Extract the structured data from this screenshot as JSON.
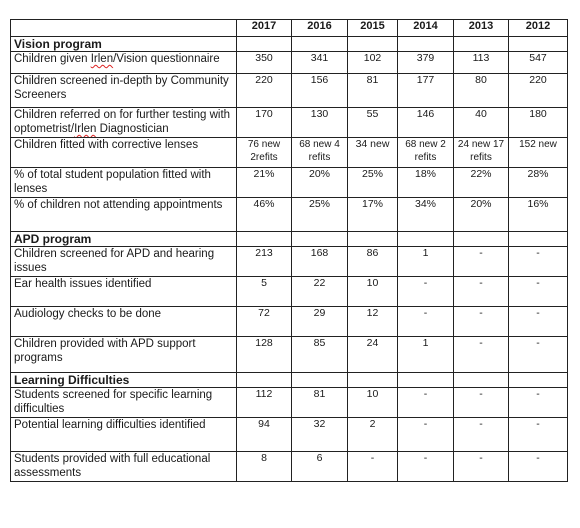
{
  "years": [
    "2017",
    "2016",
    "2015",
    "2014",
    "2013",
    "2012"
  ],
  "sections": [
    {
      "title": "Vision program",
      "rows": [
        {
          "label_parts": [
            "Children given ",
            "Irlen",
            "/Vision questionnaire"
          ],
          "values": [
            "350",
            "341",
            "102",
            "379",
            "113",
            "547"
          ]
        },
        {
          "label_parts": [
            "Children screened in-depth by Community Screeners"
          ],
          "values": [
            "220",
            "156",
            "81",
            "177",
            "80",
            "220"
          ]
        },
        {
          "label_parts": [
            "Children referred on for further testing with optometrist/",
            "Irlen",
            " Diagnostician"
          ],
          "values": [
            "170",
            "130",
            "55",
            "146",
            "40",
            "180"
          ]
        },
        {
          "label_parts": [
            "Children fitted with corrective lenses"
          ],
          "values": [
            "76 new 2refits",
            "68 new 4 refits",
            "34 new",
            "68 new 2 refits",
            "24 new 17 refits",
            "152 new"
          ]
        },
        {
          "label_parts": [
            "% of total student population fitted with lenses"
          ],
          "values": [
            "21%",
            "20%",
            "25%",
            "18%",
            "22%",
            "28%"
          ]
        },
        {
          "label_parts": [
            "% of children not attending appointments"
          ],
          "values": [
            "46%",
            "25%",
            "17%",
            "34%",
            "20%",
            "16%"
          ]
        }
      ]
    },
    {
      "title": "APD program",
      "rows": [
        {
          "label_parts": [
            "Children screened for APD and hearing issues"
          ],
          "values": [
            "213",
            "168",
            "86",
            "1",
            "-",
            "-"
          ]
        },
        {
          "label_parts": [
            "Ear health issues identified"
          ],
          "values": [
            "5",
            "22",
            "10",
            "-",
            "-",
            "-"
          ]
        },
        {
          "label_parts": [
            "Audiology checks to be done"
          ],
          "values": [
            "72",
            "29",
            "12",
            "-",
            "-",
            "-"
          ]
        },
        {
          "label_parts": [
            "Children provided with APD support programs"
          ],
          "values": [
            "128",
            "85",
            "24",
            "1",
            "-",
            "-"
          ]
        }
      ]
    },
    {
      "title": "Learning Difficulties",
      "rows": [
        {
          "label_parts": [
            "Students screened for specific learning difficulties"
          ],
          "values": [
            "112",
            "81",
            "10",
            "-",
            "-",
            "-"
          ]
        },
        {
          "label_parts": [
            "Potential learning difficulties identified"
          ],
          "values": [
            "94",
            "32",
            "2",
            "-",
            "-",
            "-"
          ]
        },
        {
          "label_parts": [
            "Students provided with full educational assessments"
          ],
          "values": [
            "8",
            "6",
            "-",
            "-",
            "-",
            "-"
          ]
        }
      ]
    }
  ]
}
